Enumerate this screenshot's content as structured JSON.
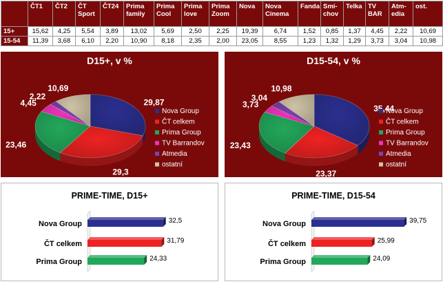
{
  "table": {
    "headers": [
      "ČT1",
      "ČT2",
      "ČT Sport",
      "ČT24",
      "Prima family",
      "Prima Cool",
      "Prima love",
      "Prima Zoom",
      "Nova",
      "Nova Cinema",
      "Fanda",
      "Smí-chov",
      "Telka",
      "TV BAR",
      "Atm-edia",
      "ost."
    ],
    "rows": [
      {
        "label": "15+",
        "values": [
          "15,62",
          "4,25",
          "5,54",
          "3,89",
          "13,02",
          "5,69",
          "2,50",
          "2,25",
          "19,39",
          "6,74",
          "1,52",
          "0,85",
          "1,37",
          "4,45",
          "2,22",
          "10,69"
        ]
      },
      {
        "label": "15-54",
        "values": [
          "11,39",
          "3,68",
          "6,10",
          "2,20",
          "10,90",
          "8,18",
          "2,35",
          "2,00",
          "23,05",
          "8,55",
          "1,23",
          "1,32",
          "1,29",
          "3,73",
          "3,04",
          "10,98"
        ]
      }
    ]
  },
  "legend_colors": {
    "Nova Group": "#2b2f8f",
    "ČT celkem": "#ee2222",
    "Prima Group": "#22a85a",
    "TV Barrandov": "#ee33bb",
    "Atmedia": "#7744aa",
    "ostatní": "#cfc3a6"
  },
  "chart_data": [
    {
      "type": "pie",
      "title": "D15+, v %",
      "labels": [
        "Nova Group",
        "ČT celkem",
        "Prima Group",
        "TV Barrandov",
        "Atmedia",
        "ostatní"
      ],
      "values": [
        29.87,
        29.3,
        23.46,
        4.45,
        2.22,
        10.69
      ],
      "value_labels": [
        "29,87",
        "29,3",
        "23,46",
        "4,45",
        "2,22",
        "10,69"
      ],
      "legend_position": "right"
    },
    {
      "type": "pie",
      "title": "D15-54, v %",
      "labels": [
        "Nova Group",
        "ČT celkem",
        "Prima Group",
        "TV Barrandov",
        "Atmedia",
        "ostatní"
      ],
      "values": [
        35.44,
        23.37,
        23.43,
        3.73,
        3.04,
        10.98
      ],
      "value_labels": [
        "35,44",
        "23,37",
        "23,43",
        "3,73",
        "3,04",
        "10,98"
      ],
      "legend_position": "right"
    },
    {
      "type": "bar",
      "orientation": "horizontal",
      "title": "PRIME-TIME, D15+",
      "categories": [
        "Nova Group",
        "ČT celkem",
        "Prima Group"
      ],
      "values": [
        32.5,
        31.79,
        24.33
      ],
      "value_labels": [
        "32,5",
        "31,79",
        "24,33"
      ],
      "xlim": [
        0,
        40
      ]
    },
    {
      "type": "bar",
      "orientation": "horizontal",
      "title": "PRIME-TIME, D15-54",
      "categories": [
        "Nova Group",
        "ČT celkem",
        "Prima Group"
      ],
      "values": [
        39.75,
        25.99,
        24.09
      ],
      "value_labels": [
        "39,75",
        "25,99",
        "24,09"
      ],
      "xlim": [
        0,
        40
      ]
    }
  ]
}
